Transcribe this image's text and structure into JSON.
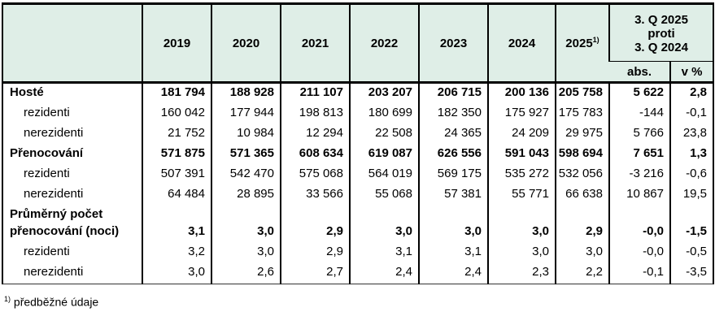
{
  "colors": {
    "header_bg": "#dfeee7",
    "grid_border": "#000000",
    "text": "#000000",
    "page_bg": "#ffffff"
  },
  "chart_data": {
    "type": "table",
    "header": {
      "corner_label": "",
      "years": [
        "2019",
        "2020",
        "2021",
        "2022",
        "2023",
        "2024"
      ],
      "year_prelim": "2025",
      "year_prelim_sup": "1)",
      "comparison_title": "3. Q 2025\nproti\n3. Q 2024",
      "comparison_sub": [
        "abs.",
        "v %"
      ]
    },
    "columns_order": [
      "2019",
      "2020",
      "2021",
      "2022",
      "2023",
      "2024",
      "2025 (predbezne)",
      "3.Q 2025 vs 3.Q 2024 abs.",
      "3.Q 2025 vs 3.Q 2024 v %"
    ],
    "rows": [
      {
        "label": "Hosté",
        "type": "section",
        "values": [
          "181 794",
          "188 928",
          "211 107",
          "203 207",
          "206 715",
          "200 136",
          "205 758",
          "5 622",
          "2,8"
        ]
      },
      {
        "label": "rezidenti",
        "type": "sub",
        "values": [
          "160 042",
          "177 944",
          "198 813",
          "180 699",
          "182 350",
          "175 927",
          "175 783",
          "-144",
          "-0,1"
        ]
      },
      {
        "label": "nerezidenti",
        "type": "sub",
        "values": [
          "21 752",
          "10 984",
          "12 294",
          "22 508",
          "24 365",
          "24 209",
          "29 975",
          "5 766",
          "23,8"
        ]
      },
      {
        "label": "Přenocování",
        "type": "section",
        "values": [
          "571 875",
          "571 365",
          "608 634",
          "619 087",
          "626 556",
          "591 043",
          "598 694",
          "7 651",
          "1,3"
        ]
      },
      {
        "label": "rezidenti",
        "type": "sub",
        "values": [
          "507 391",
          "542 470",
          "575 068",
          "564 019",
          "569 175",
          "535 272",
          "532 056",
          "-3 216",
          "-0,6"
        ]
      },
      {
        "label": "nerezidenti",
        "type": "sub",
        "values": [
          "64 484",
          "28 895",
          "33 566",
          "55 068",
          "57 381",
          "55 771",
          "66 638",
          "10 867",
          "19,5"
        ]
      },
      {
        "label": "Průměrný počet\npřenocování (noci)",
        "type": "section",
        "values": [
          "3,1",
          "3,0",
          "2,9",
          "3,0",
          "3,0",
          "3,0",
          "2,9",
          "-0,0",
          "-1,5"
        ]
      },
      {
        "label": "rezidenti",
        "type": "sub",
        "values": [
          "3,2",
          "3,0",
          "2,9",
          "3,1",
          "3,1",
          "3,0",
          "3,0",
          "-0,0",
          "-0,5"
        ]
      },
      {
        "label": "nerezidenti",
        "type": "sub",
        "values": [
          "3,0",
          "2,6",
          "2,7",
          "2,4",
          "2,4",
          "2,3",
          "2,2",
          "-0,1",
          "-3,5"
        ]
      }
    ],
    "footnote": {
      "sup": "1)",
      "text": "předběžné údaje"
    }
  }
}
